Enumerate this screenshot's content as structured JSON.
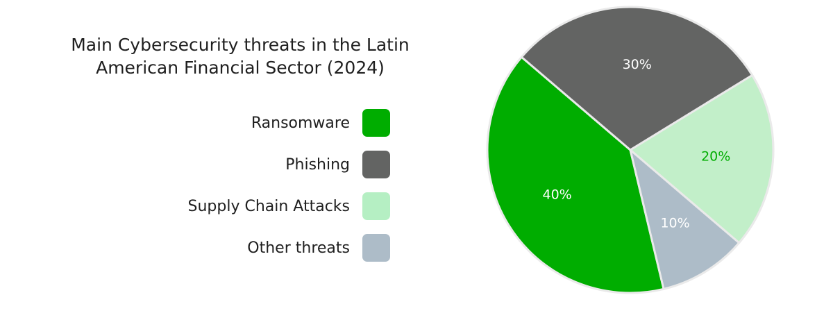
{
  "chart_data": {
    "type": "pie",
    "title_lines": [
      "Main Cybersecurity threats in the Latin",
      "American Financial Sector (2024)"
    ],
    "categories": [
      "Ransomware",
      "Phishing",
      "Supply Chain Attacks",
      "Other threats"
    ],
    "values": [
      40,
      30,
      20,
      10
    ],
    "value_labels": [
      "40%",
      "30%",
      "20%",
      "10%"
    ],
    "colors": [
      "#00ad00",
      "#636463",
      "#c2efc9",
      "#adbcc8"
    ],
    "legend_colors": [
      "#00ad00",
      "#636463",
      "#b5efc3",
      "#adbcc8"
    ],
    "label_colors": [
      "#ffffff",
      "#ffffff",
      "#00ad00",
      "#ffffff"
    ],
    "legend_position": "left"
  }
}
